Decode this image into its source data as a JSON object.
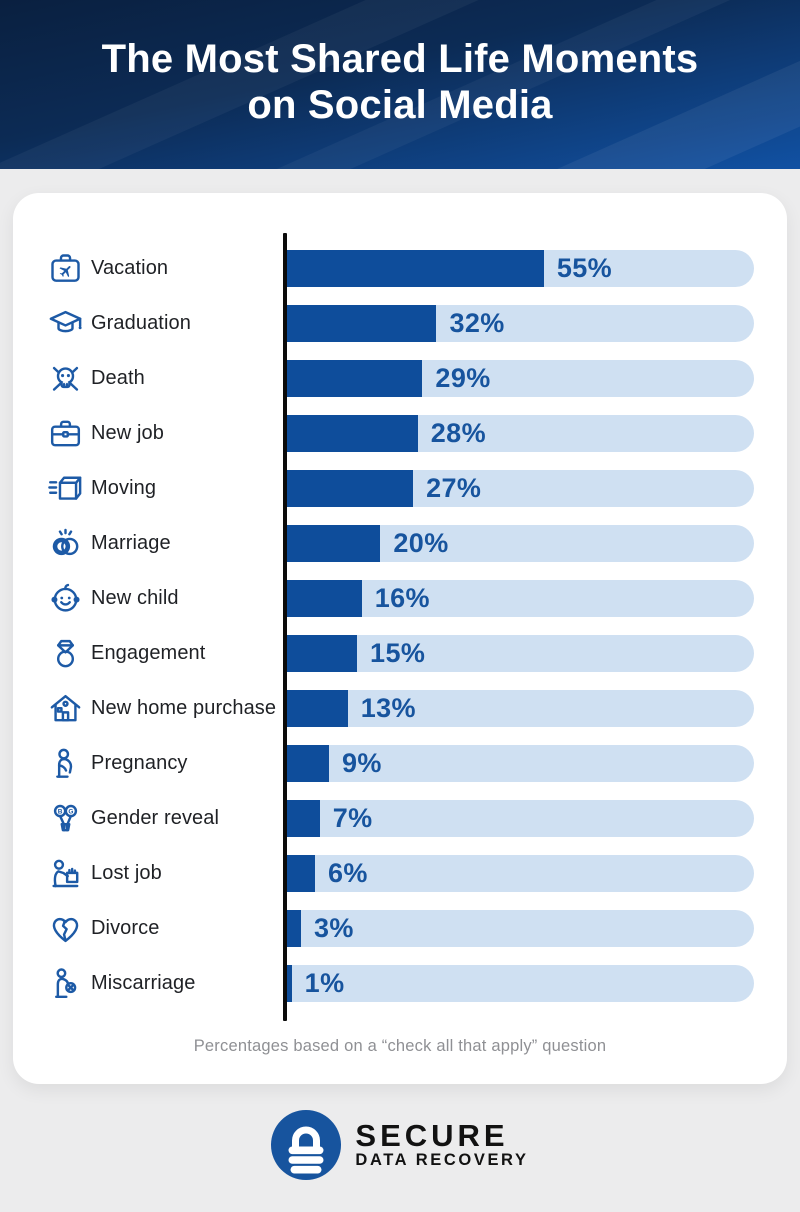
{
  "header": {
    "title_line1": "The Most Shared Life Moments",
    "title_line2": "on Social Media"
  },
  "chart_data": {
    "type": "bar",
    "orientation": "horizontal",
    "title": "The Most Shared Life Moments on Social Media",
    "categories": [
      "Vacation",
      "Graduation",
      "Death",
      "New job",
      "Moving",
      "Marriage",
      "New child",
      "Engagement",
      "New home purchase",
      "Pregnancy",
      "Gender reveal",
      "Lost job",
      "Divorce",
      "Miscarriage"
    ],
    "values": [
      55,
      32,
      29,
      28,
      27,
      20,
      16,
      15,
      13,
      9,
      7,
      6,
      3,
      1
    ],
    "value_labels": [
      "55%",
      "32%",
      "29%",
      "28%",
      "27%",
      "20%",
      "16%",
      "15%",
      "13%",
      "9%",
      "7%",
      "6%",
      "3%",
      "1%"
    ],
    "icons": [
      "suitcase-plane-icon",
      "graduation-cap-icon",
      "skull-crossbones-icon",
      "briefcase-icon",
      "moving-box-icon",
      "wedding-rings-icon",
      "baby-face-icon",
      "engagement-ring-icon",
      "house-icon",
      "pregnant-woman-icon",
      "gender-reveal-balloons-icon",
      "lost-job-box-icon",
      "broken-heart-icon",
      "miscarriage-icon"
    ],
    "xlim": [
      0,
      100
    ],
    "grid": false,
    "legend": "none",
    "note": "Percentages based on a “check all that apply” question"
  },
  "footer": {
    "note": "Percentages based on a “check all that apply” question"
  },
  "logo": {
    "line1": "SECURE",
    "line2": "DATA RECOVERY",
    "icon": "padlock-icon"
  },
  "colors": {
    "bar": "#0e4d9b",
    "track": "#cfe0f2",
    "value_label": "#17549e",
    "icon_stroke": "#1d5aa6",
    "header_top": "#0a2040",
    "header_bottom": "#1151a3",
    "background": "#ececed",
    "axis": "#0b0b0b",
    "logo_circle": "#17549e"
  }
}
